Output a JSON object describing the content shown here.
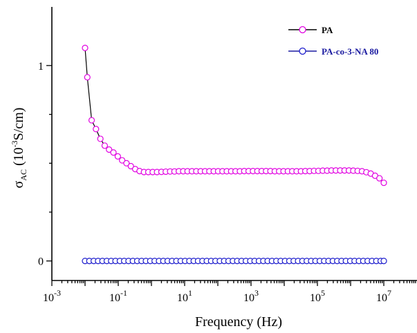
{
  "chart_data": {
    "type": "scatter",
    "xscale": "log",
    "xlabel": "Frequency (Hz)",
    "ylabel_main": "σ",
    "ylabel_sub": "AC",
    "ylabel_rest_open": " (10",
    "ylabel_sup": "-3",
    "ylabel_rest_close": "S/cm)",
    "xlim": [
      0.001,
      100000000
    ],
    "ylim": [
      -0.1,
      1.3
    ],
    "grid": false,
    "legend_position": "top-right",
    "xticks": [
      {
        "exp": -3,
        "base": "10",
        "sup": "-3"
      },
      {
        "exp": -1,
        "base": "10",
        "sup": "-1"
      },
      {
        "exp": 1,
        "base": "10",
        "sup": "1"
      },
      {
        "exp": 3,
        "base": "10",
        "sup": "3"
      },
      {
        "exp": 5,
        "base": "10",
        "sup": "5"
      },
      {
        "exp": 7,
        "base": "10",
        "sup": "7"
      }
    ],
    "yticks": [
      {
        "value": 0,
        "label": "0"
      },
      {
        "value": 1,
        "label": "1"
      }
    ],
    "series": [
      {
        "name": "PA",
        "marker_color": "#e100e1",
        "line_color": "#000000",
        "points": [
          [
            0.01,
            1.09
          ],
          [
            0.0117,
            0.94
          ],
          [
            0.0158,
            0.72
          ],
          [
            0.0213,
            0.675
          ],
          [
            0.0289,
            0.625
          ],
          [
            0.0391,
            0.59
          ],
          [
            0.0529,
            0.57
          ],
          [
            0.0716,
            0.555
          ],
          [
            0.0969,
            0.535
          ],
          [
            0.131,
            0.515
          ],
          [
            0.177,
            0.5
          ],
          [
            0.24,
            0.485
          ],
          [
            0.325,
            0.47
          ],
          [
            0.439,
            0.46
          ],
          [
            0.595,
            0.455
          ],
          [
            0.805,
            0.455
          ],
          [
            1.09,
            0.455
          ],
          [
            1.47,
            0.455
          ],
          [
            2.0,
            0.456
          ],
          [
            2.7,
            0.457
          ],
          [
            3.65,
            0.458
          ],
          [
            4.94,
            0.458
          ],
          [
            6.69,
            0.459
          ],
          [
            9.05,
            0.459
          ],
          [
            12.2,
            0.459
          ],
          [
            16.6,
            0.459
          ],
          [
            22.4,
            0.459
          ],
          [
            30.4,
            0.459
          ],
          [
            41.1,
            0.459
          ],
          [
            55.6,
            0.459
          ],
          [
            75.3,
            0.459
          ],
          [
            102,
            0.459
          ],
          [
            138,
            0.459
          ],
          [
            186,
            0.459
          ],
          [
            252,
            0.459
          ],
          [
            341,
            0.459
          ],
          [
            462,
            0.459
          ],
          [
            625,
            0.46
          ],
          [
            846,
            0.46
          ],
          [
            1145,
            0.46
          ],
          [
            1549,
            0.46
          ],
          [
            2097,
            0.46
          ],
          [
            2837,
            0.46
          ],
          [
            3840,
            0.46
          ],
          [
            5196,
            0.459
          ],
          [
            7031,
            0.459
          ],
          [
            9515,
            0.459
          ],
          [
            12877,
            0.459
          ],
          [
            17425,
            0.459
          ],
          [
            23580,
            0.459
          ],
          [
            31909,
            0.459
          ],
          [
            43181,
            0.46
          ],
          [
            58434,
            0.46
          ],
          [
            79076,
            0.461
          ],
          [
            107009,
            0.461
          ],
          [
            144809,
            0.462
          ],
          [
            195961,
            0.462
          ],
          [
            265183,
            0.463
          ],
          [
            358858,
            0.463
          ],
          [
            485623,
            0.463
          ],
          [
            657166,
            0.463
          ],
          [
            889306,
            0.463
          ],
          [
            1203448,
            0.462
          ],
          [
            1628555,
            0.461
          ],
          [
            2203826,
            0.459
          ],
          [
            2982308,
            0.454
          ],
          [
            4035779,
            0.447
          ],
          [
            5461373,
            0.436
          ],
          [
            7390537,
            0.423
          ],
          [
            10000000,
            0.4
          ]
        ]
      },
      {
        "name": "PA-co-3-NA 80",
        "marker_color": "#1a1acc",
        "line_color": "#1a1aa0",
        "points": [
          [
            0.01,
            0.0
          ],
          [
            0.0135,
            0.0
          ],
          [
            0.0183,
            0.0
          ],
          [
            0.0247,
            0.0
          ],
          [
            0.0334,
            0.0
          ],
          [
            0.0452,
            0.0
          ],
          [
            0.0611,
            0.0
          ],
          [
            0.0826,
            0.0
          ],
          [
            0.112,
            0.0
          ],
          [
            0.151,
            0.0
          ],
          [
            0.204,
            0.0
          ],
          [
            0.276,
            0.0
          ],
          [
            0.373,
            0.0
          ],
          [
            0.505,
            0.0
          ],
          [
            0.682,
            0.0
          ],
          [
            0.922,
            0.0
          ],
          [
            1.25,
            0.0
          ],
          [
            1.69,
            0.0
          ],
          [
            2.28,
            0.0
          ],
          [
            3.08,
            0.0
          ],
          [
            4.17,
            0.0
          ],
          [
            5.64,
            0.0
          ],
          [
            7.62,
            0.0
          ],
          [
            10.3,
            0.0
          ],
          [
            13.9,
            0.0
          ],
          [
            18.8,
            0.0
          ],
          [
            25.4,
            0.0
          ],
          [
            34.4,
            0.0
          ],
          [
            46.5,
            0.0
          ],
          [
            62.8,
            0.0
          ],
          [
            84.9,
            0.0
          ],
          [
            115,
            0.0
          ],
          [
            155,
            0.0
          ],
          [
            210,
            0.0
          ],
          [
            284,
            0.0
          ],
          [
            383,
            0.0
          ],
          [
            519,
            0.0
          ],
          [
            701,
            0.0
          ],
          [
            948,
            0.0
          ],
          [
            1282,
            0.0
          ],
          [
            1733,
            0.0
          ],
          [
            2343,
            0.0
          ],
          [
            3168,
            0.0
          ],
          [
            4283,
            0.0
          ],
          [
            5790,
            0.0
          ],
          [
            7828,
            0.0
          ],
          [
            10583,
            0.0
          ],
          [
            14308,
            0.0
          ],
          [
            19344,
            0.0
          ],
          [
            26152,
            0.0
          ],
          [
            35356,
            0.0
          ],
          [
            47799,
            0.0
          ],
          [
            64622,
            0.0
          ],
          [
            87365,
            0.0
          ],
          [
            118114,
            0.0
          ],
          [
            159684,
            0.0
          ],
          [
            215884,
            0.0
          ],
          [
            291865,
            0.0
          ],
          [
            394587,
            0.0
          ],
          [
            533462,
            0.0
          ],
          [
            721216,
            0.0
          ],
          [
            975049,
            0.0
          ],
          [
            1318222,
            0.0
          ],
          [
            1782176,
            0.0
          ],
          [
            2409424,
            0.0
          ],
          [
            3257436,
            0.0
          ],
          [
            4403907,
            0.0
          ],
          [
            5953886,
            0.0
          ],
          [
            8049339,
            0.0
          ],
          [
            10000000,
            0.0
          ]
        ]
      }
    ]
  }
}
